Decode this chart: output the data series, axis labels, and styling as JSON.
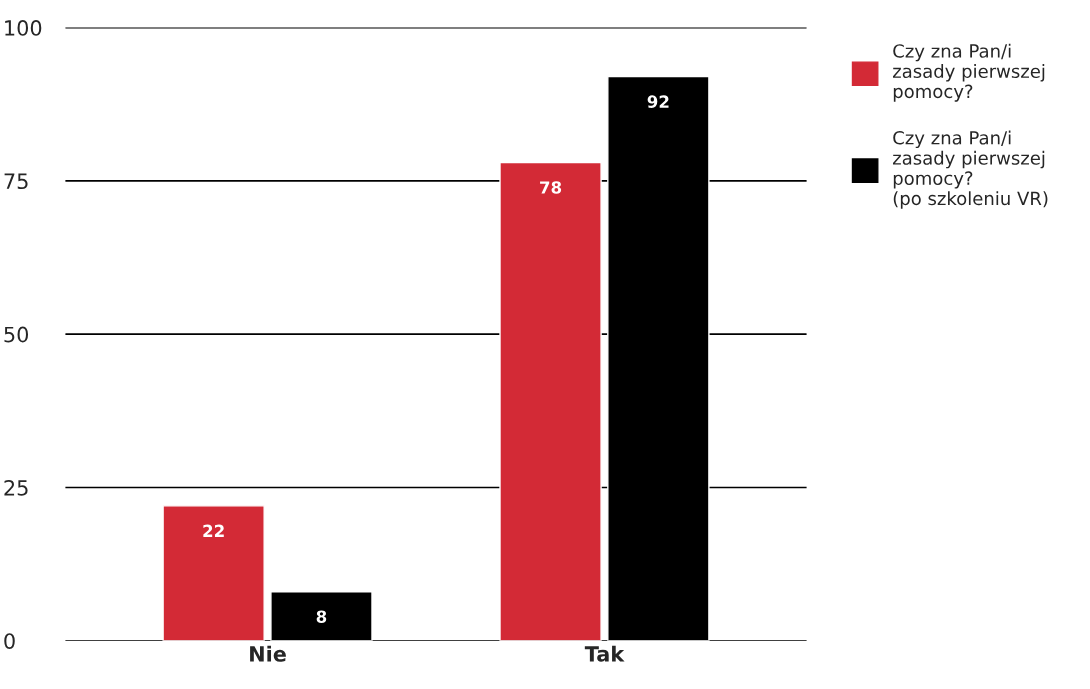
{
  "chart_data": {
    "type": "bar",
    "categories": [
      "Nie",
      "Tak"
    ],
    "series": [
      {
        "name": "Czy zna Pan/i\nzasady pierwszej\npomocy?",
        "color": "#d32a36",
        "values": [
          22,
          78
        ]
      },
      {
        "name": "Czy zna Pan/i\nzasady pierwszej\npomocy?\n(po szkoleniu VR)",
        "color": "#000000",
        "values": [
          8,
          92
        ]
      }
    ],
    "ylim": [
      0,
      100
    ],
    "yticks": [
      0,
      25,
      50,
      75,
      100
    ],
    "grid": "y",
    "legend": "right",
    "data_labels": true
  }
}
